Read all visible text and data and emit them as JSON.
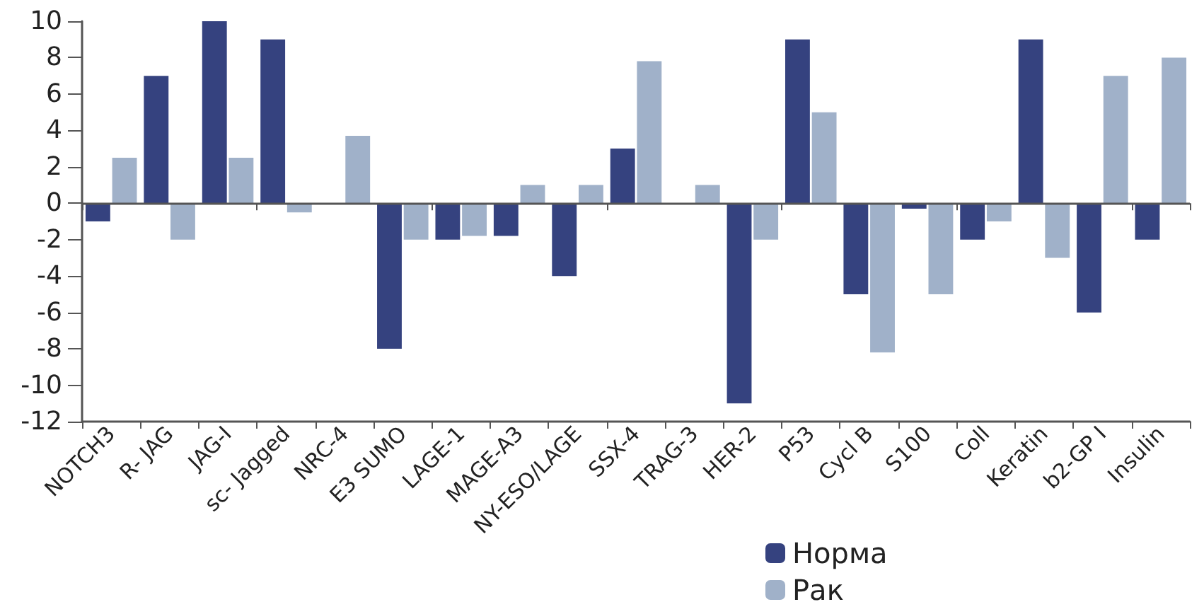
{
  "chart_data": {
    "type": "bar",
    "categories": [
      "NOTCH3",
      "R- JAG",
      "JAG-I",
      "sc- Jagged",
      "NRC-4",
      "E3 SUMO",
      "LAGE-1",
      "MAGE-A3",
      "NY-ESO/LAGE",
      "SSX-4",
      "TRAG-3",
      "HER-2",
      "P53",
      "Cycl B",
      "S100",
      "Coll",
      "Keratin",
      "b2-GP I",
      "Insulin"
    ],
    "series": [
      {
        "name": "Норма",
        "color": "#35427f",
        "values": [
          -1,
          7,
          10,
          9,
          0,
          -8,
          -2,
          -1.8,
          -4,
          3,
          0,
          -11,
          9,
          -5,
          -0.3,
          -2,
          9,
          -6,
          -2
        ]
      },
      {
        "name": "Рак",
        "color": "#a0b1c9",
        "values": [
          2.5,
          -2,
          2.5,
          -0.5,
          3.7,
          -2,
          -1.8,
          1,
          1,
          7.8,
          1,
          -2,
          5,
          -8.2,
          -5,
          -1,
          -3,
          7,
          8
        ]
      }
    ],
    "ylim": [
      -12,
      10
    ],
    "yticks": [
      -12,
      -10,
      -8,
      -6,
      -4,
      -2,
      0,
      2,
      4,
      6,
      8,
      10
    ],
    "ref_lines": [
      {
        "axis": "y",
        "value": 0,
        "color": "#555555"
      }
    ],
    "grid": false,
    "legend": "bottom"
  }
}
